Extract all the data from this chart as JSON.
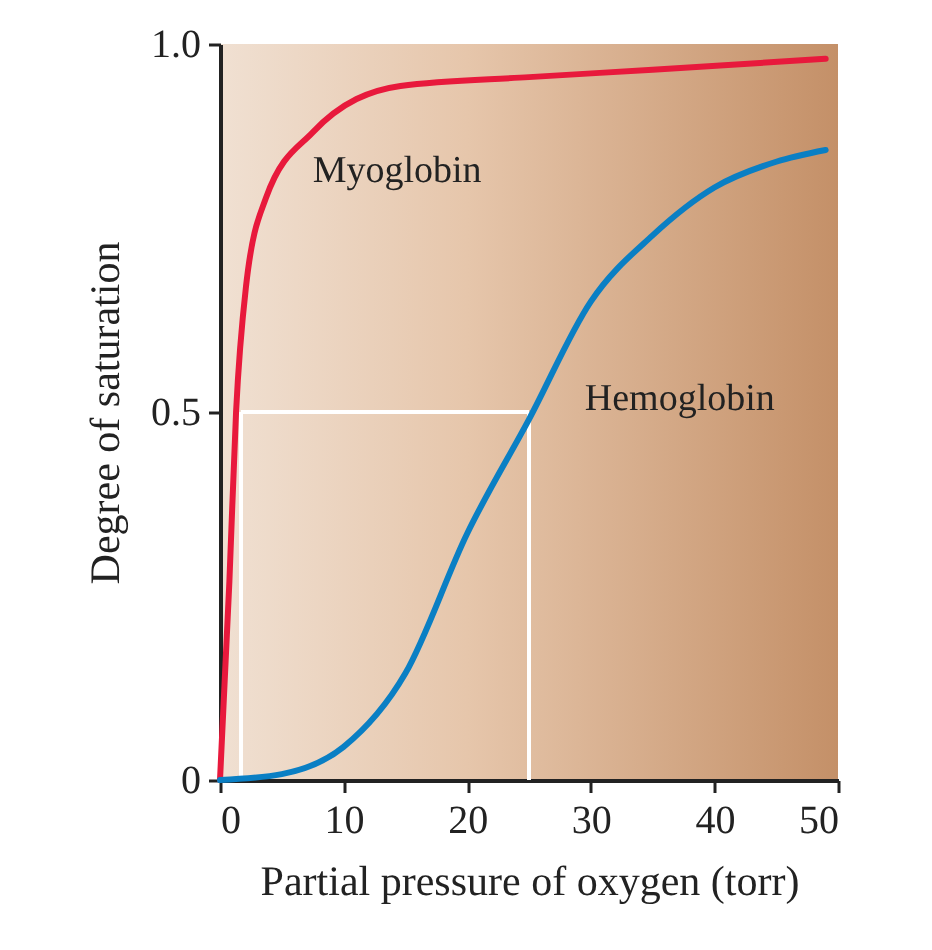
{
  "chart_data": {
    "type": "line",
    "xlabel": "Partial pressure of oxygen (torr)",
    "ylabel": "Degree of saturation",
    "xlim": [
      0,
      50
    ],
    "xticks": [
      0,
      10,
      20,
      30,
      40,
      50
    ],
    "ylim": [
      0,
      1
    ],
    "yticks": [
      0,
      0.5,
      {
        "value": 1,
        "label": "1.0"
      }
    ],
    "marker": "none",
    "line_style": "solid",
    "series": [
      {
        "name": "Myoglobin",
        "color": "#e8193c",
        "x": [
          0,
          0.76,
          1.3,
          2.1,
          3.7,
          7.5,
          14.6,
          25,
          35,
          49
        ],
        "values": [
          0,
          0.27,
          0.5,
          0.67,
          0.79,
          0.88,
          0.943,
          0.955,
          0.965,
          0.98
        ]
      },
      {
        "name": "Hemoglobin",
        "color": "#0a7fc4",
        "x": [
          0,
          5,
          10,
          15,
          20,
          25,
          30,
          35,
          40,
          45,
          49
        ],
        "values": [
          0,
          0.008,
          0.045,
          0.145,
          0.335,
          0.49,
          0.65,
          0.74,
          0.805,
          0.84,
          0.856
        ]
      }
    ],
    "ref_lines": [
      {
        "axis": "y",
        "value": 0.5,
        "color": "#ffffff"
      },
      {
        "axis": "x",
        "value": 1.7,
        "color": "#ffffff"
      },
      {
        "axis": "x",
        "value": 25,
        "color": "#ffffff"
      }
    ]
  }
}
